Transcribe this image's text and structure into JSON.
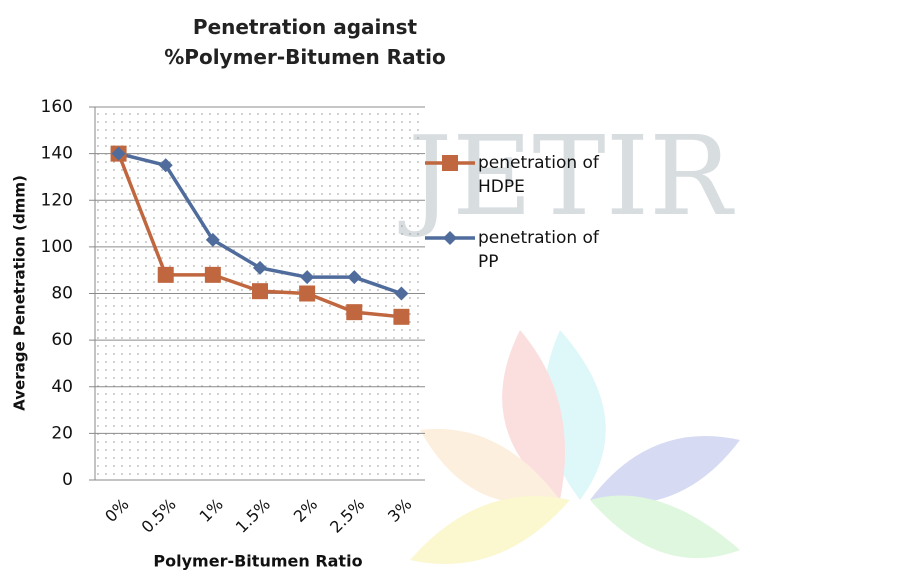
{
  "chart_data": {
    "type": "line",
    "title": "Penetration against %Polymer-Bitumen Ratio",
    "watermark": "JETIR",
    "x_label": "Polymer-Bitumen Ratio",
    "y_label": "Average Penetration (dmm)",
    "categories": [
      "0%",
      "0.5%",
      "1%",
      "1.5%",
      "2%",
      "2.5%",
      "3%"
    ],
    "series": [
      {
        "name": "penetration of HDPE",
        "color": "#c0673f",
        "marker": "square",
        "values": [
          140,
          88,
          88,
          81,
          80,
          72,
          70
        ]
      },
      {
        "name": "penetration of PP",
        "color": "#4f6c9c",
        "marker": "diamond",
        "values": [
          140,
          135,
          103,
          91,
          87,
          87,
          80
        ]
      }
    ],
    "ylim": [
      0,
      160
    ],
    "yticks": [
      0,
      20,
      40,
      60,
      80,
      100,
      120,
      140,
      160
    ],
    "grid": true,
    "legend": "right"
  }
}
